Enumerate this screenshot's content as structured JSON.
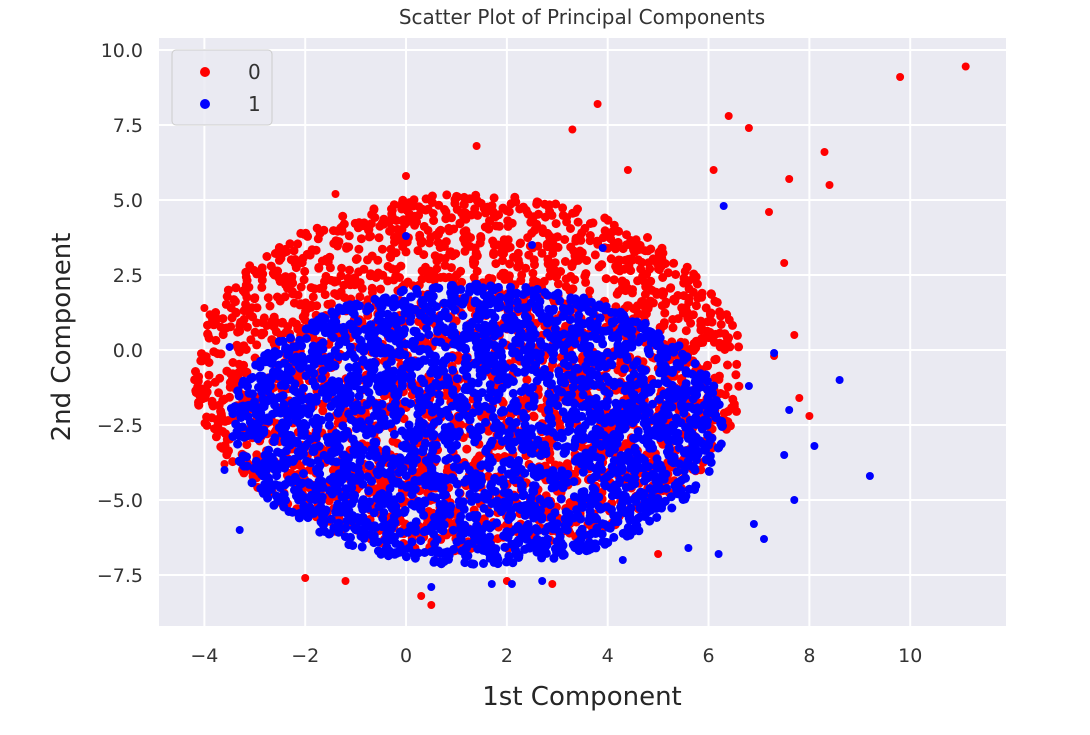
{
  "chart_data": {
    "type": "scatter",
    "title": "Scatter Plot of Principal Components",
    "xlabel": "1st Component",
    "ylabel": "2nd Component",
    "xlim": [
      -4.9,
      11.9
    ],
    "ylim": [
      -9.2,
      10.4
    ],
    "xticks": [
      -4,
      -2,
      0,
      2,
      4,
      6,
      8,
      10
    ],
    "xtick_labels": [
      "−4",
      "−2",
      "0",
      "2",
      "4",
      "6",
      "8",
      "10"
    ],
    "yticks": [
      10.0,
      7.5,
      5.0,
      2.5,
      0.0,
      -2.5,
      -5.0,
      -7.5
    ],
    "ytick_labels": [
      "10.0",
      "7.5",
      "5.0",
      "2.5",
      "0.0",
      "−2.5",
      "−5.0",
      "−7.5"
    ],
    "grid": true,
    "background": "#eaeaf2",
    "legend_position": "top-left",
    "series": [
      {
        "name": "0",
        "color": "#ff0000",
        "cluster": {
          "x_range": [
            -4.2,
            6.7
          ],
          "y_range": [
            -6.8,
            5.2
          ],
          "x_center": 1.2,
          "y_center": -0.8
        },
        "points": [
          [
            11.1,
            9.45
          ],
          [
            9.8,
            9.1
          ],
          [
            3.8,
            8.2
          ],
          [
            6.4,
            7.8
          ],
          [
            6.8,
            7.4
          ],
          [
            3.3,
            7.35
          ],
          [
            8.3,
            6.6
          ],
          [
            1.4,
            6.8
          ],
          [
            6.1,
            6.0
          ],
          [
            8.4,
            5.5
          ],
          [
            7.6,
            5.7
          ],
          [
            7.2,
            4.6
          ],
          [
            -1.4,
            5.2
          ],
          [
            0.0,
            5.8
          ],
          [
            7.5,
            2.9
          ],
          [
            7.7,
            0.5
          ],
          [
            7.3,
            -0.2
          ],
          [
            7.8,
            -1.6
          ],
          [
            8.0,
            -2.2
          ],
          [
            2.0,
            -7.7
          ],
          [
            2.9,
            -7.8
          ],
          [
            0.3,
            -8.2
          ],
          [
            0.5,
            -8.5
          ],
          [
            -1.2,
            -7.7
          ],
          [
            -2.0,
            -7.6
          ],
          [
            5.0,
            -6.8
          ],
          [
            -4.2,
            -1.0
          ],
          [
            -4.0,
            1.4
          ],
          [
            -3.6,
            -3.8
          ],
          [
            4.4,
            6.0
          ]
        ]
      },
      {
        "name": "1",
        "color": "#0000ff",
        "cluster": {
          "x_range": [
            -3.5,
            6.3
          ],
          "y_range": [
            -7.2,
            2.2
          ],
          "x_center": 1.1,
          "y_center": -2.8
        },
        "points": [
          [
            6.3,
            4.8
          ],
          [
            0.0,
            3.8
          ],
          [
            2.5,
            3.5
          ],
          [
            8.6,
            -1.0
          ],
          [
            9.2,
            -4.2
          ],
          [
            8.1,
            -3.2
          ],
          [
            7.7,
            -5.0
          ],
          [
            7.5,
            -3.5
          ],
          [
            7.6,
            -2.0
          ],
          [
            7.1,
            -6.3
          ],
          [
            6.9,
            -5.8
          ],
          [
            5.6,
            -6.6
          ],
          [
            6.2,
            -6.8
          ],
          [
            4.3,
            -7.0
          ],
          [
            1.7,
            -7.8
          ],
          [
            2.1,
            -7.8
          ],
          [
            2.7,
            -7.7
          ],
          [
            0.5,
            -7.9
          ],
          [
            -3.3,
            -6.0
          ],
          [
            -3.6,
            -4.0
          ],
          [
            6.8,
            -1.2
          ],
          [
            7.3,
            -0.1
          ],
          [
            -3.5,
            0.1
          ],
          [
            3.9,
            3.4
          ]
        ]
      }
    ]
  }
}
